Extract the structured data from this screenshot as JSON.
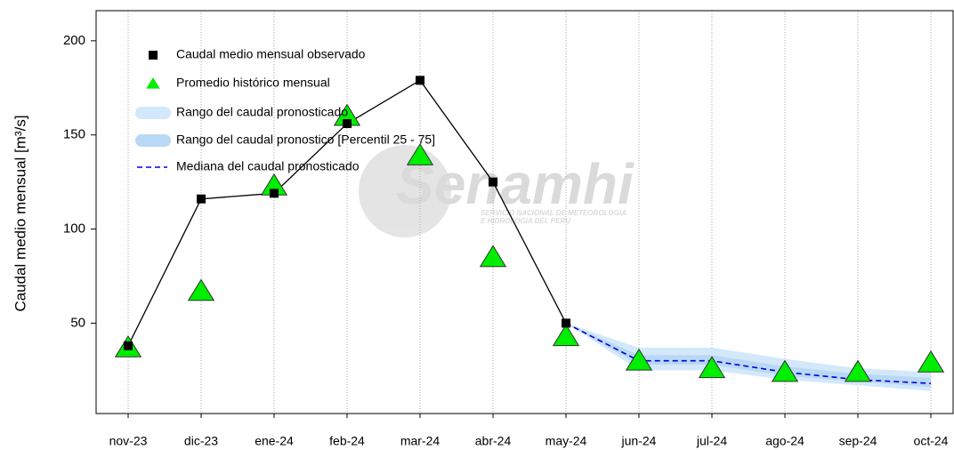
{
  "chart_data": {
    "type": "hydrograph",
    "y_label": "Caudal medio mensual  [m³/s]",
    "watermark": "Senamhi",
    "watermark_subtitle": [
      "SERVICIO NACIONAL DE METEOROLOGIA",
      "E HIDROLOGIA DEL PERU"
    ],
    "categories": [
      "nov-23",
      "dic-23",
      "ene-24",
      "feb-24",
      "mar-24",
      "abr-24",
      "may-24",
      "jun-24",
      "jul-24",
      "ago-24",
      "sep-24",
      "oct-24"
    ],
    "ylim": [
      2,
      216
    ],
    "yticks": [
      50,
      100,
      150,
      200
    ],
    "grid": true,
    "series": [
      {
        "name": "Caudal medio mensual observado",
        "kind": "square",
        "color": "#000000",
        "values": [
          38,
          116,
          119,
          156,
          179,
          125,
          50,
          null,
          null,
          null,
          null,
          null
        ]
      },
      {
        "name": "Promedio histórico mensual",
        "kind": "triangle",
        "color": "#00ee00",
        "values": [
          37,
          67,
          123,
          160,
          139,
          85,
          43,
          30,
          26,
          24,
          24,
          29
        ]
      },
      {
        "name": "Rango del caudal pronosticado",
        "kind": "band",
        "color": "#d3e8fa",
        "low": [
          null,
          null,
          null,
          null,
          null,
          null,
          50,
          25,
          25,
          20,
          17,
          14
        ],
        "high": [
          null,
          null,
          null,
          null,
          null,
          null,
          50,
          37,
          37,
          31,
          26,
          24
        ]
      },
      {
        "name": "Rango del caudal pronostico [Percentil 25 - 75]",
        "kind": "band",
        "color": "#b9d8f5",
        "low": [
          null,
          null,
          null,
          null,
          null,
          null,
          50,
          28,
          28,
          22,
          19,
          16
        ],
        "high": [
          null,
          null,
          null,
          null,
          null,
          null,
          50,
          33,
          33,
          27,
          23,
          21
        ]
      },
      {
        "name": "Mediana del caudal pronosticado",
        "kind": "dashed",
        "color": "#0000dd",
        "values": [
          null,
          null,
          null,
          null,
          null,
          null,
          50,
          30,
          30,
          24,
          20,
          18
        ]
      }
    ]
  }
}
